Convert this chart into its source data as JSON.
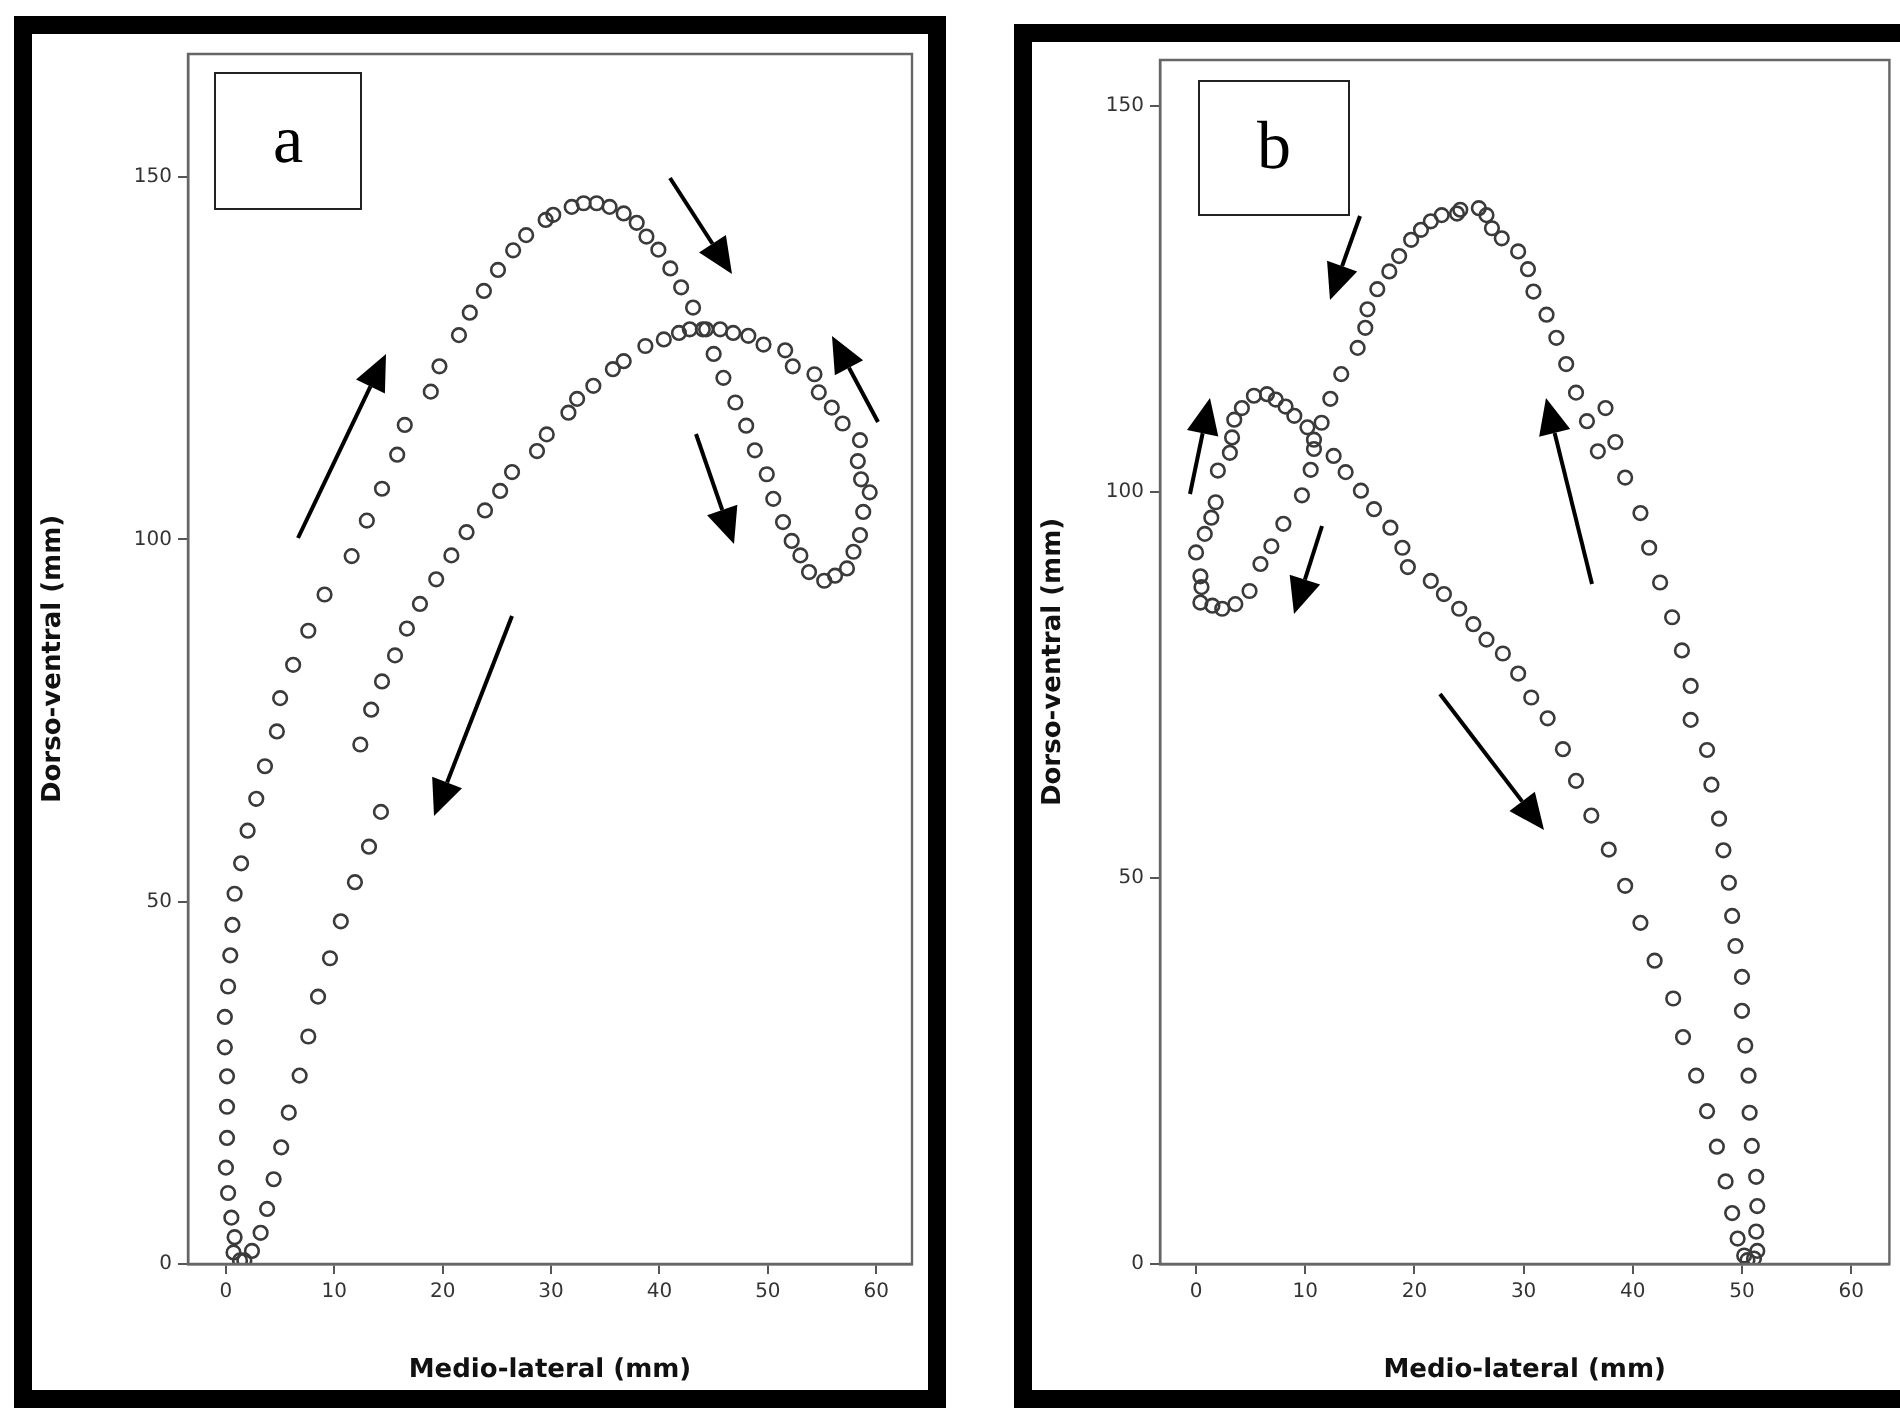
{
  "chart_data": [
    {
      "type": "scatter",
      "title": "a",
      "xlabel": "Medio-lateral (mm)",
      "ylabel": "Dorso-ventral (mm)",
      "color": "#3a3a3a",
      "marker": "circle",
      "grid": false,
      "xlim": [
        -3.5,
        63.3
      ],
      "ylim": [
        0,
        167
      ],
      "xticks": [
        0,
        10,
        20,
        30,
        40,
        50,
        60
      ],
      "yticks": [
        0,
        50,
        100,
        150
      ],
      "x": [
        1.3,
        0.7,
        0.8,
        0.5,
        0.2,
        0,
        0.1,
        0.1,
        0.1,
        -0.1,
        -0.1,
        0.2,
        0.4,
        0.6,
        0.8,
        1.4,
        2.0,
        2.8,
        3.6,
        4.7,
        5.0,
        6.2,
        7.6,
        9.1,
        11.6,
        13.0,
        14.4,
        15.8,
        16.5,
        18.9,
        19.7,
        21.5,
        22.5,
        23.8,
        25.1,
        26.5,
        27.7,
        29.5,
        30.2,
        31.9,
        33.0,
        34.2,
        35.4,
        36.7,
        37.9,
        38.8,
        39.9,
        41.0,
        42.0,
        43.1,
        44.0,
        45.0,
        45.9,
        47.0,
        48.0,
        48.8,
        49.9,
        50.5,
        51.4,
        52.2,
        53.0,
        53.8,
        55.2,
        56.2,
        57.3,
        57.9,
        58.5,
        58.8,
        59.4,
        58.6,
        58.3,
        58.5,
        56.9,
        55.9,
        54.7,
        54.3,
        52.3,
        51.6,
        49.6,
        48.2,
        46.8,
        45.6,
        44.3,
        42.8,
        41.8,
        40.4,
        38.7,
        36.7,
        35.7,
        33.9,
        32.4,
        31.6,
        29.6,
        28.7,
        26.4,
        25.3,
        23.9,
        22.2,
        20.8,
        19.4,
        17.9,
        16.7,
        15.6,
        14.4,
        13.4,
        12.4,
        14.3,
        13.2,
        11.9,
        10.6,
        9.6,
        8.5,
        7.6,
        6.8,
        5.8,
        5.1,
        4.4,
        3.8,
        3.2,
        2.4,
        1.7
      ],
      "values": [
        0.5,
        1.6,
        3.7,
        6.4,
        9.8,
        13.3,
        17.4,
        21.7,
        25.9,
        29.9,
        34.1,
        38.3,
        42.6,
        46.8,
        51.1,
        55.3,
        59.8,
        64.2,
        68.7,
        73.5,
        78.1,
        82.7,
        87.4,
        92.4,
        97.7,
        102.6,
        107.0,
        111.7,
        115.8,
        120.4,
        123.9,
        128.2,
        131.3,
        134.3,
        137.2,
        139.9,
        142.0,
        144.1,
        144.8,
        145.9,
        146.4,
        146.4,
        145.9,
        145.0,
        143.7,
        141.8,
        140.0,
        137.4,
        134.8,
        132.0,
        129.0,
        125.6,
        122.3,
        118.9,
        115.7,
        112.3,
        109.0,
        105.6,
        102.4,
        99.8,
        97.8,
        95.5,
        94.3,
        95.0,
        96.0,
        98.3,
        100.6,
        103.8,
        106.5,
        108.3,
        110.8,
        113.7,
        116.0,
        118.2,
        120.3,
        122.8,
        123.9,
        126.1,
        126.9,
        128.1,
        128.5,
        129.0,
        129.0,
        129.0,
        128.5,
        127.6,
        126.7,
        124.6,
        123.5,
        121.2,
        119.4,
        117.5,
        114.5,
        112.2,
        109.3,
        106.7,
        104.0,
        101.0,
        97.8,
        94.5,
        91.1,
        87.7,
        84.0,
        80.4,
        76.5,
        71.7,
        62.4,
        57.6,
        52.7,
        47.3,
        42.2,
        36.9,
        31.4,
        26.0,
        20.9,
        16.1,
        11.7,
        7.6,
        4.3,
        1.8,
        0.5
      ]
    },
    {
      "type": "scatter",
      "title": "b",
      "xlabel": "Medio-lateral (mm)",
      "ylabel": "Dorso-ventral (mm)",
      "color": "#3a3a3a",
      "marker": "circle",
      "grid": false,
      "xlim": [
        -3.3,
        63.5
      ],
      "ylim": [
        0,
        156
      ],
      "xticks": [
        0,
        10,
        20,
        30,
        40,
        50,
        60
      ],
      "yticks": [
        0,
        50,
        100,
        150
      ],
      "x": [
        51.1,
        51.4,
        51.3,
        51.4,
        51.3,
        50.9,
        50.7,
        50.6,
        50.3,
        50.0,
        50.0,
        49.4,
        49.1,
        48.8,
        48.3,
        47.9,
        47.2,
        46.8,
        45.3,
        45.3,
        44.5,
        43.6,
        42.5,
        41.5,
        40.7,
        39.3,
        38.4,
        37.5,
        36.8,
        35.8,
        34.8,
        33.9,
        33.0,
        32.1,
        30.9,
        30.4,
        29.5,
        28.0,
        27.1,
        26.6,
        25.9,
        24.2,
        23.9,
        22.5,
        21.5,
        20.6,
        19.7,
        18.6,
        17.7,
        16.6,
        15.7,
        15.5,
        14.8,
        13.3,
        12.3,
        11.5,
        10.8,
        10.5,
        9.7,
        8.0,
        6.9,
        5.9,
        4.9,
        3.6,
        2.4,
        1.5,
        0.4,
        0.5,
        0.4,
        0.0,
        0.8,
        1.4,
        1.8,
        2.0,
        3.1,
        3.3,
        3.5,
        4.2,
        5.3,
        6.5,
        7.3,
        8.2,
        9.0,
        10.2,
        10.8,
        12.6,
        13.7,
        15.1,
        16.3,
        17.8,
        18.9,
        19.4,
        21.5,
        22.7,
        24.1,
        25.4,
        26.6,
        28.1,
        29.5,
        30.7,
        32.2,
        33.6,
        34.8,
        36.2,
        37.8,
        39.3,
        40.7,
        42.0,
        43.7,
        44.6,
        45.8,
        46.8,
        47.7,
        48.5,
        49.1,
        49.6,
        50.2,
        50.5
      ],
      "values": [
        0.7,
        1.7,
        4.2,
        7.5,
        11.3,
        15.3,
        19.6,
        24.4,
        28.3,
        32.8,
        37.2,
        41.2,
        45.1,
        49.4,
        53.6,
        57.7,
        62.1,
        66.6,
        70.5,
        74.9,
        79.5,
        83.8,
        88.3,
        92.8,
        97.3,
        101.9,
        106.5,
        110.9,
        105.3,
        109.2,
        112.9,
        116.6,
        120.0,
        123.0,
        126.0,
        128.9,
        131.2,
        132.9,
        134.2,
        135.9,
        136.8,
        136.6,
        136.1,
        135.9,
        135.1,
        134.0,
        132.7,
        130.6,
        128.6,
        126.3,
        123.7,
        121.3,
        118.7,
        115.3,
        112.1,
        109.0,
        105.6,
        102.9,
        99.6,
        95.9,
        93.0,
        90.7,
        87.2,
        85.5,
        84.9,
        85.3,
        85.7,
        87.7,
        89.1,
        92.2,
        94.6,
        96.7,
        98.7,
        102.8,
        105.1,
        107.1,
        109.4,
        110.9,
        112.5,
        112.7,
        112.0,
        111.1,
        109.9,
        108.4,
        106.8,
        104.7,
        102.6,
        100.2,
        97.8,
        95.4,
        92.8,
        90.3,
        88.5,
        86.8,
        84.9,
        82.9,
        80.9,
        79.1,
        76.5,
        73.4,
        70.7,
        66.7,
        62.6,
        58.1,
        53.7,
        49.0,
        44.2,
        39.3,
        34.4,
        29.4,
        24.4,
        19.8,
        15.2,
        10.7,
        6.6,
        3.3,
        1.1,
        0.5
      ]
    }
  ]
}
